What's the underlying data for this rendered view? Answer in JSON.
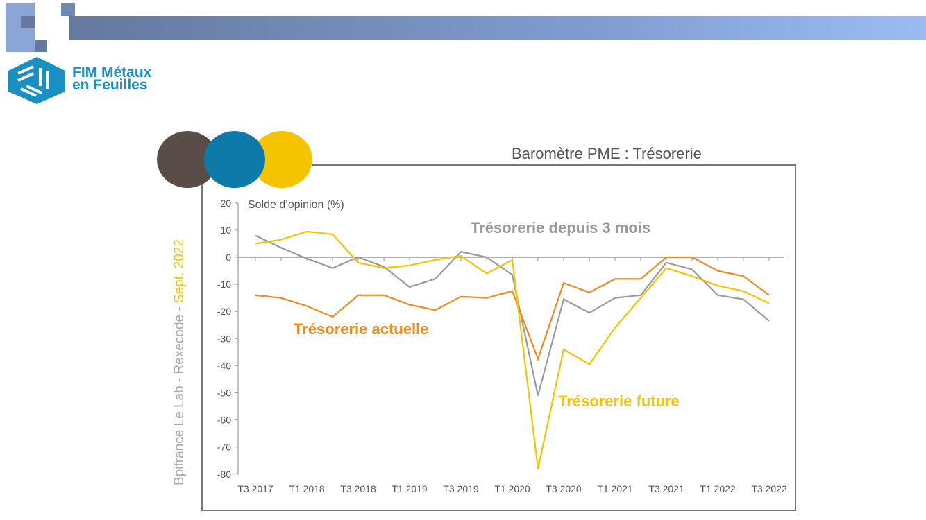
{
  "header": {
    "logo_line1": "FIM Métaux",
    "logo_line2": "en Feuilles"
  },
  "source": {
    "text": "Bpifrance Le Lab - Rexecode - ",
    "date": "Sept. 2022"
  },
  "chart_data": {
    "type": "line",
    "title": "Baromètre PME : Trésorerie",
    "ylabel": "Solde d’opinion (%)",
    "ylim": [
      -80,
      20
    ],
    "yticks": [
      20,
      10,
      0,
      -10,
      -20,
      -30,
      -40,
      -50,
      -60,
      -70,
      -80
    ],
    "x": [
      "T3 2017",
      "T4 2017",
      "T1 2018",
      "T2 2018",
      "T3 2018",
      "T4 2018",
      "T1 2019",
      "T2 2019",
      "T3 2019",
      "T4 2019",
      "T1 2020",
      "T2 2020",
      "T3 2020",
      "T4 2020",
      "T1 2021",
      "T2 2021",
      "T3 2021",
      "T4 2021",
      "T1 2022",
      "T2 2022",
      "T3 2022"
    ],
    "xtick_labels": [
      "T3 2017",
      "T1 2018",
      "T3 2018",
      "T1 2019",
      "T3 2019",
      "T1 2020",
      "T3 2020",
      "T1 2021",
      "T3 2021",
      "T1 2022",
      "T3 2022"
    ],
    "series": [
      {
        "name": "Trésorerie depuis 3 mois",
        "color": "#9a9a9a",
        "values": [
          8,
          3.5,
          -0.5,
          -4,
          0,
          -3.5,
          -11,
          -8,
          2,
          0,
          -6.5,
          -51,
          -15.5,
          -20.5,
          -15,
          -14,
          -2,
          -4.5,
          -14,
          -15.5,
          -23.5
        ]
      },
      {
        "name": "Trésorerie actuelle",
        "color": "#f08a1c",
        "values": [
          -14,
          -15,
          -18,
          -22,
          -14,
          -14,
          -17.5,
          -19.5,
          -14.5,
          -15,
          -12.5,
          -37.5,
          -9.5,
          -13,
          -8,
          -8,
          0,
          0,
          -5,
          -7,
          -14
        ]
      },
      {
        "name": "Trésorerie future",
        "color": "#f5c400",
        "values": [
          5,
          6.5,
          9.5,
          8.5,
          -2,
          -4,
          -3,
          -1,
          0.5,
          -6,
          -1,
          -78,
          -34,
          -39.5,
          -26,
          -15,
          -4,
          -7,
          -10.5,
          -12.5,
          -17
        ]
      }
    ]
  }
}
